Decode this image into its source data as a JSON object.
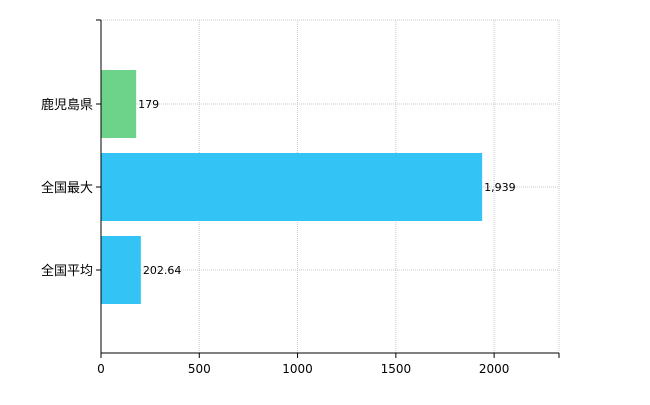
{
  "chart_data": {
    "type": "bar",
    "orientation": "horizontal",
    "categories": [
      "鹿児島県",
      "全国最大",
      "全国平均"
    ],
    "values": [
      179,
      1939,
      202.64
    ],
    "data_labels": [
      "179",
      "1,939",
      "202.64"
    ],
    "colors": [
      "#6dd38a",
      "#33c3f5",
      "#33c3f5"
    ],
    "xlim": [
      0,
      2330
    ],
    "xticks": [
      0,
      500,
      1000,
      1500,
      2000
    ],
    "xtick_labels": [
      "0",
      "500",
      "1000",
      "1500",
      "2000"
    ],
    "grid": true,
    "title": "",
    "xlabel": "",
    "ylabel": ""
  }
}
